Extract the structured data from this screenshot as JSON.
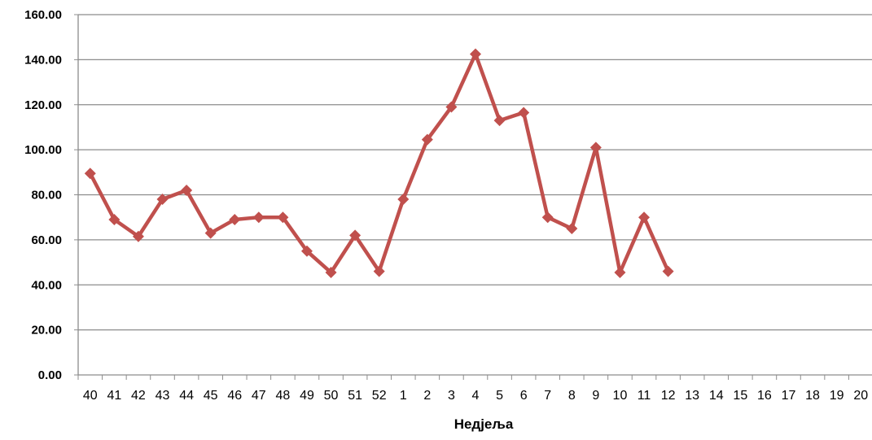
{
  "chart_data": {
    "type": "line",
    "title": "",
    "xlabel": "Недјеља",
    "ylabel": "",
    "ylim": [
      0,
      160
    ],
    "y_ticks": [
      "0.00",
      "20.00",
      "40.00",
      "60.00",
      "80.00",
      "100.00",
      "120.00",
      "140.00",
      "160.00"
    ],
    "grid": true,
    "legend": "none",
    "categories": [
      "40",
      "41",
      "42",
      "43",
      "44",
      "45",
      "46",
      "47",
      "48",
      "49",
      "50",
      "51",
      "52",
      "1",
      "2",
      "3",
      "4",
      "5",
      "6",
      "7",
      "8",
      "9",
      "10",
      "11",
      "12",
      "13",
      "14",
      "15",
      "16",
      "17",
      "18",
      "19",
      "20"
    ],
    "series": [
      {
        "color": "#c0504d",
        "marker": "diamond",
        "values": [
          89.5,
          69,
          61.5,
          78,
          82,
          63,
          69,
          70,
          70,
          55,
          45.5,
          62,
          46,
          78,
          104.5,
          119,
          142.5,
          113,
          116.5,
          70,
          65,
          101,
          45.5,
          70,
          46,
          null,
          null,
          null,
          null,
          null,
          null,
          null,
          null
        ]
      }
    ]
  }
}
